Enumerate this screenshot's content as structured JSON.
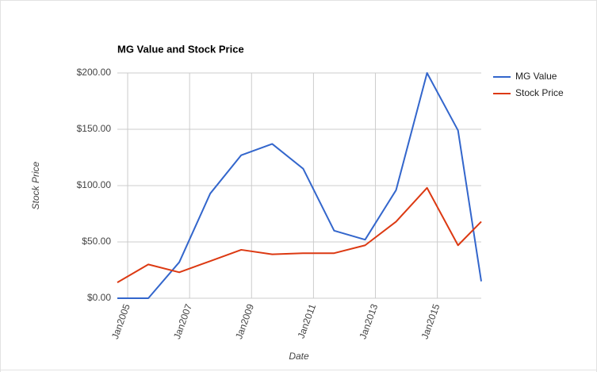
{
  "chart_data": {
    "type": "line",
    "title": "MG Value and Stock Price",
    "x_label": "Date",
    "y_label": "Stock Price",
    "x": [
      "2004-09",
      "2005-09",
      "2006-09",
      "2007-09",
      "2008-09",
      "2009-09",
      "2010-09",
      "2011-09",
      "2012-09",
      "2013-09",
      "2014-09",
      "2015-09",
      "2016-06"
    ],
    "series": [
      {
        "name": "MG Value",
        "color": "#3366cc",
        "values": [
          0,
          0,
          32,
          93,
          127,
          137,
          115,
          60,
          52,
          96,
          200,
          149,
          15
        ]
      },
      {
        "name": "Stock Price",
        "color": "#dc3912",
        "values": [
          14,
          30,
          23,
          33,
          43,
          39,
          40,
          40,
          47,
          68,
          98,
          47,
          68
        ]
      }
    ],
    "xlim": [
      "2004-09",
      "2016-06"
    ],
    "xticks": [
      {
        "value": "2005-01",
        "label": "Jan2005"
      },
      {
        "value": "2007-01",
        "label": "Jan2007"
      },
      {
        "value": "2009-01",
        "label": "Jan2009"
      },
      {
        "value": "2011-01",
        "label": "Jan2011"
      },
      {
        "value": "2013-01",
        "label": "Jan2013"
      },
      {
        "value": "2015-01",
        "label": "Jan2015"
      }
    ],
    "ylim": [
      0,
      200
    ],
    "yticks": [
      {
        "value": 0,
        "label": "$0.00"
      },
      {
        "value": 50,
        "label": "$50.00"
      },
      {
        "value": 100,
        "label": "$100.00"
      },
      {
        "value": 150,
        "label": "$150.00"
      },
      {
        "value": 200,
        "label": "$200.00"
      }
    ],
    "grid": true,
    "legend": "right"
  }
}
